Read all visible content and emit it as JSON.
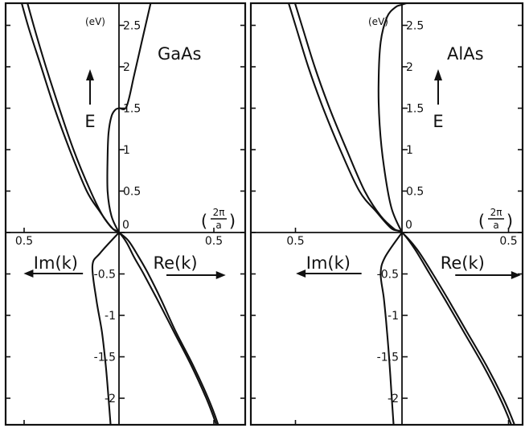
{
  "chart_data": [
    {
      "type": "line",
      "title": "",
      "material": "GaAs",
      "energy_label": "E",
      "energy_unit": "(eV)",
      "k_unit_num": "2π",
      "k_unit_den": "a",
      "left_label": "Im(k)",
      "right_label": "Re(k)",
      "x_tick_left": "0.5",
      "x_tick_right": "0.5",
      "xlim": [
        -0.6,
        0.6
      ],
      "ylim": [
        -2.55,
        3.05
      ],
      "y_ticks": [
        {
          "value": 2.5,
          "label": "2.5"
        },
        {
          "value": 2,
          "label": "2"
        },
        {
          "value": 1.5,
          "label": "1.5"
        },
        {
          "value": 1,
          "label": "1"
        },
        {
          "value": 0.5,
          "label": "0.5"
        },
        {
          "value": 0,
          "label": "0"
        },
        {
          "value": -0.5,
          "label": "-0.5"
        },
        {
          "value": -1,
          "label": "-1"
        },
        {
          "value": -1.5,
          "label": "-1.5"
        },
        {
          "value": -2,
          "label": "-2"
        }
      ],
      "series": [
        {
          "points": [
            [
              -0.54,
              3.0
            ],
            [
              -0.48,
              2.5
            ],
            [
              -0.41,
              2.0
            ],
            [
              -0.34,
              1.5
            ],
            [
              -0.26,
              1.0
            ],
            [
              -0.17,
              0.5
            ],
            [
              -0.1,
              0.25
            ],
            [
              -0.04,
              0.06
            ],
            [
              0.0,
              0.0
            ],
            [
              0.04,
              -0.12
            ],
            [
              0.08,
              -0.3
            ],
            [
              0.13,
              -0.5
            ],
            [
              0.2,
              -0.8
            ],
            [
              0.29,
              -1.2
            ],
            [
              0.38,
              -1.6
            ],
            [
              0.46,
              -2.0
            ],
            [
              0.51,
              -2.3
            ],
            [
              0.535,
              -2.5
            ]
          ]
        },
        {
          "points": [
            [
              -0.51,
              3.0
            ],
            [
              -0.45,
              2.5
            ],
            [
              -0.385,
              2.0
            ],
            [
              -0.315,
              1.5
            ],
            [
              -0.24,
              1.0
            ],
            [
              -0.15,
              0.5
            ],
            [
              -0.085,
              0.2
            ],
            [
              -0.03,
              0.04
            ],
            [
              0.0,
              0.0
            ],
            [
              0.05,
              -0.1
            ],
            [
              0.1,
              -0.28
            ],
            [
              0.15,
              -0.48
            ],
            [
              0.22,
              -0.8
            ],
            [
              0.3,
              -1.2
            ],
            [
              0.39,
              -1.6
            ],
            [
              0.47,
              -2.0
            ],
            [
              0.52,
              -2.3
            ],
            [
              0.545,
              -2.5
            ]
          ]
        },
        {
          "points": [
            [
              0.0,
              0.0
            ],
            [
              -0.1,
              -0.25
            ],
            [
              -0.14,
              -0.4
            ],
            [
              -0.12,
              -0.8
            ],
            [
              -0.09,
              -1.2
            ],
            [
              -0.07,
              -1.6
            ],
            [
              -0.055,
              -2.0
            ],
            [
              -0.045,
              -2.3
            ],
            [
              -0.04,
              -2.5
            ]
          ]
        },
        {
          "points": [
            [
              0.0,
              0.0
            ],
            [
              -0.04,
              0.2
            ],
            [
              -0.06,
              0.5
            ],
            [
              -0.06,
              0.9
            ],
            [
              -0.055,
              1.2
            ],
            [
              -0.04,
              1.4
            ],
            [
              -0.02,
              1.48
            ],
            [
              0.0,
              1.5
            ],
            [
              0.04,
              1.52
            ],
            [
              0.08,
              1.9
            ],
            [
              0.12,
              2.3
            ],
            [
              0.16,
              2.7
            ],
            [
              0.19,
              3.0
            ]
          ]
        }
      ]
    },
    {
      "type": "line",
      "title": "",
      "material": "AlAs",
      "energy_label": "E",
      "energy_unit": "(eV)",
      "k_unit_num": "2π",
      "k_unit_den": "a",
      "left_label": "Im(k)",
      "right_label": "Re(k)",
      "x_tick_left": "0.5",
      "x_tick_right": "0.5",
      "xlim": [
        -0.6,
        0.6
      ],
      "ylim": [
        -2.55,
        3.05
      ],
      "y_ticks": [
        {
          "value": 2.5,
          "label": "2.5"
        },
        {
          "value": 2,
          "label": "2"
        },
        {
          "value": 1.5,
          "label": "1.5"
        },
        {
          "value": 1,
          "label": "1"
        },
        {
          "value": 0.5,
          "label": "0.5"
        },
        {
          "value": 0,
          "label": "0"
        },
        {
          "value": -0.5,
          "label": "-0.5"
        },
        {
          "value": -1,
          "label": "-1"
        },
        {
          "value": -1.5,
          "label": "-1.5"
        },
        {
          "value": -2,
          "label": "-2"
        }
      ],
      "series": [
        {
          "points": [
            [
              -0.56,
              3.0
            ],
            [
              -0.5,
              2.5
            ],
            [
              -0.44,
              2.0
            ],
            [
              -0.37,
              1.5
            ],
            [
              -0.29,
              1.0
            ],
            [
              -0.2,
              0.5
            ],
            [
              -0.12,
              0.25
            ],
            [
              -0.05,
              0.05
            ],
            [
              0.0,
              0.0
            ],
            [
              0.06,
              -0.2
            ],
            [
              0.13,
              -0.5
            ],
            [
              0.2,
              -0.8
            ],
            [
              0.29,
              -1.2
            ],
            [
              0.38,
              -1.6
            ],
            [
              0.46,
              -2.0
            ],
            [
              0.51,
              -2.3
            ],
            [
              0.535,
              -2.5
            ]
          ]
        },
        {
          "points": [
            [
              -0.53,
              3.0
            ],
            [
              -0.47,
              2.5
            ],
            [
              -0.41,
              2.0
            ],
            [
              -0.34,
              1.5
            ],
            [
              -0.26,
              1.0
            ],
            [
              -0.175,
              0.5
            ],
            [
              -0.1,
              0.2
            ],
            [
              -0.035,
              0.04
            ],
            [
              0.0,
              0.0
            ],
            [
              0.07,
              -0.2
            ],
            [
              0.145,
              -0.5
            ],
            [
              0.215,
              -0.8
            ],
            [
              0.305,
              -1.2
            ],
            [
              0.395,
              -1.6
            ],
            [
              0.475,
              -2.0
            ],
            [
              0.525,
              -2.3
            ],
            [
              0.55,
              -2.5
            ]
          ]
        },
        {
          "points": [
            [
              0.0,
              0.0
            ],
            [
              -0.08,
              -0.3
            ],
            [
              -0.1,
              -0.5
            ],
            [
              -0.085,
              -0.8
            ],
            [
              -0.07,
              -1.2
            ],
            [
              -0.058,
              -1.6
            ],
            [
              -0.048,
              -2.0
            ],
            [
              -0.04,
              -2.3
            ],
            [
              -0.036,
              -2.5
            ]
          ]
        },
        {
          "points": [
            [
              0.0,
              0.0
            ],
            [
              -0.05,
              0.3
            ],
            [
              -0.085,
              0.8
            ],
            [
              -0.105,
              1.3
            ],
            [
              -0.11,
              1.8
            ],
            [
              -0.1,
              2.3
            ],
            [
              -0.07,
              2.6
            ],
            [
              -0.03,
              2.72
            ],
            [
              0.0,
              2.75
            ],
            [
              0.05,
              2.8
            ],
            [
              0.09,
              2.92
            ],
            [
              0.11,
              3.0
            ]
          ]
        }
      ]
    }
  ]
}
